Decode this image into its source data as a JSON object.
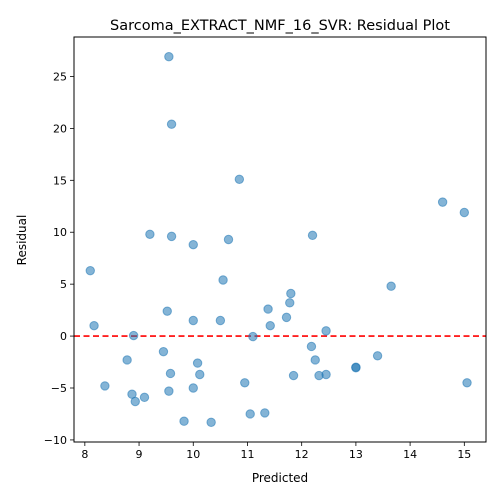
{
  "chart_data": {
    "type": "scatter",
    "title": "Sarcoma_EXTRACT_NMF_16_SVR: Residual Plot",
    "xlabel": "Predicted",
    "ylabel": "Residual",
    "xlim": [
      7.8,
      15.4
    ],
    "ylim": [
      -10.2,
      28.8
    ],
    "xticks": [
      8,
      9,
      10,
      11,
      12,
      13,
      14,
      15
    ],
    "yticks": [
      -10,
      -5,
      0,
      5,
      10,
      15,
      20,
      25
    ],
    "reference_line": {
      "y": 0,
      "style": "dashed",
      "color": "#ff0000"
    },
    "point_color": "#1f77b4",
    "point_opacity": 0.55,
    "grid": false,
    "points": [
      {
        "x": 9.55,
        "y": 26.9
      },
      {
        "x": 9.6,
        "y": 20.4
      },
      {
        "x": 10.85,
        "y": 15.1
      },
      {
        "x": 14.6,
        "y": 12.9
      },
      {
        "x": 15.0,
        "y": 11.9
      },
      {
        "x": 9.2,
        "y": 9.8
      },
      {
        "x": 9.6,
        "y": 9.6
      },
      {
        "x": 10.0,
        "y": 8.8
      },
      {
        "x": 10.65,
        "y": 9.3
      },
      {
        "x": 12.2,
        "y": 9.7
      },
      {
        "x": 8.1,
        "y": 6.3
      },
      {
        "x": 10.55,
        "y": 5.4
      },
      {
        "x": 13.65,
        "y": 4.8
      },
      {
        "x": 11.8,
        "y": 4.1
      },
      {
        "x": 11.78,
        "y": 3.2
      },
      {
        "x": 11.38,
        "y": 2.6
      },
      {
        "x": 9.52,
        "y": 2.4
      },
      {
        "x": 11.72,
        "y": 1.8
      },
      {
        "x": 10.0,
        "y": 1.5
      },
      {
        "x": 10.5,
        "y": 1.5
      },
      {
        "x": 8.17,
        "y": 1.0
      },
      {
        "x": 11.42,
        "y": 1.0
      },
      {
        "x": 12.45,
        "y": 0.5
      },
      {
        "x": 8.9,
        "y": 0.05
      },
      {
        "x": 11.1,
        "y": -0.05
      },
      {
        "x": 12.18,
        "y": -1.0
      },
      {
        "x": 9.45,
        "y": -1.5
      },
      {
        "x": 13.4,
        "y": -1.9
      },
      {
        "x": 8.78,
        "y": -2.3
      },
      {
        "x": 12.25,
        "y": -2.3
      },
      {
        "x": 10.08,
        "y": -2.6
      },
      {
        "x": 13.0,
        "y": -3.0
      },
      {
        "x": 13.0,
        "y": -3.05
      },
      {
        "x": 9.58,
        "y": -3.6
      },
      {
        "x": 10.12,
        "y": -3.7
      },
      {
        "x": 11.85,
        "y": -3.8
      },
      {
        "x": 12.32,
        "y": -3.8
      },
      {
        "x": 12.45,
        "y": -3.7
      },
      {
        "x": 10.95,
        "y": -4.5
      },
      {
        "x": 15.05,
        "y": -4.5
      },
      {
        "x": 8.37,
        "y": -4.8
      },
      {
        "x": 10.0,
        "y": -5.0
      },
      {
        "x": 9.55,
        "y": -5.3
      },
      {
        "x": 8.87,
        "y": -5.6
      },
      {
        "x": 9.1,
        "y": -5.9
      },
      {
        "x": 8.93,
        "y": -6.3
      },
      {
        "x": 11.05,
        "y": -7.5
      },
      {
        "x": 11.32,
        "y": -7.4
      },
      {
        "x": 9.83,
        "y": -8.2
      },
      {
        "x": 10.33,
        "y": -8.3
      }
    ]
  }
}
